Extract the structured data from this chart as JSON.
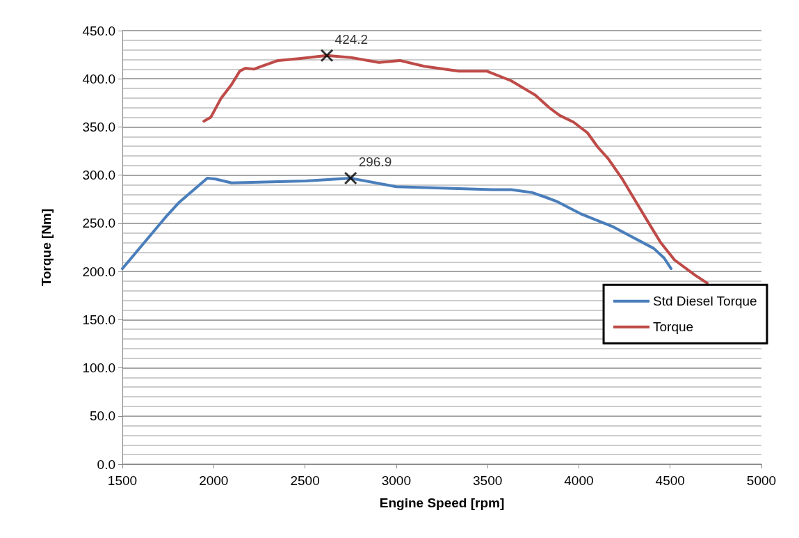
{
  "chart_data": {
    "type": "line",
    "xlabel": "Engine Speed [rpm]",
    "ylabel": "Torque [Nm]",
    "xlim": [
      1500,
      5000
    ],
    "xticks": [
      1500,
      2000,
      2500,
      3000,
      3500,
      4000,
      4500,
      5000
    ],
    "ylim": [
      0,
      450
    ],
    "yticks": [
      {
        "value": 0,
        "label": "0.0"
      },
      {
        "value": 50,
        "label": "50.0"
      },
      {
        "value": 100,
        "label": "100.0"
      },
      {
        "value": 150,
        "label": "150.0"
      },
      {
        "value": 200,
        "label": "200.0"
      },
      {
        "value": 250,
        "label": "250.0"
      },
      {
        "value": 300,
        "label": "300.0"
      },
      {
        "value": 350,
        "label": "350.0"
      },
      {
        "value": 400,
        "label": "400.0"
      },
      {
        "value": 450,
        "label": "450.0"
      }
    ],
    "grid": "y",
    "legend": "right",
    "marker": "none",
    "line_style": "solid",
    "series": [
      {
        "name": "Std Diesel Torque",
        "color": "#4a7ebb",
        "x": [
          1500,
          1744,
          1812,
          1965,
          2010,
          2098,
          2505,
          2750,
          3000,
          3526,
          3630,
          3743,
          3819,
          3876,
          4009,
          4181,
          4410,
          4467,
          4505
        ],
        "values": [
          203,
          258,
          272,
          296.8,
          296,
          292,
          294,
          296.9,
          288,
          285,
          285,
          282,
          277,
          273,
          260,
          247,
          224,
          214,
          203
        ]
      },
      {
        "name": "Torque",
        "color": "#be4b48",
        "x": [
          1946,
          1984,
          2041,
          2098,
          2143,
          2174,
          2220,
          2277,
          2353,
          2467,
          2620,
          2753,
          2905,
          3019,
          3153,
          3343,
          3495,
          3629,
          3762,
          3838,
          3895,
          3971,
          4047,
          4104,
          4161,
          4238,
          4314,
          4371,
          4448,
          4524,
          4638,
          4703
        ],
        "values": [
          356,
          360,
          380,
          394,
          408,
          411,
          410,
          414,
          419,
          421,
          424.2,
          422,
          417,
          419,
          413,
          408,
          408,
          398,
          383,
          370,
          362,
          355,
          344,
          329,
          317,
          296,
          272,
          254,
          230,
          212,
          196,
          188
        ]
      },
      {
        "type": "scatter",
        "marker": "cross",
        "color": "#000000",
        "data_labels": true,
        "x": [
          2620,
          2750
        ],
        "values": [
          424.2,
          296.9
        ]
      }
    ]
  }
}
